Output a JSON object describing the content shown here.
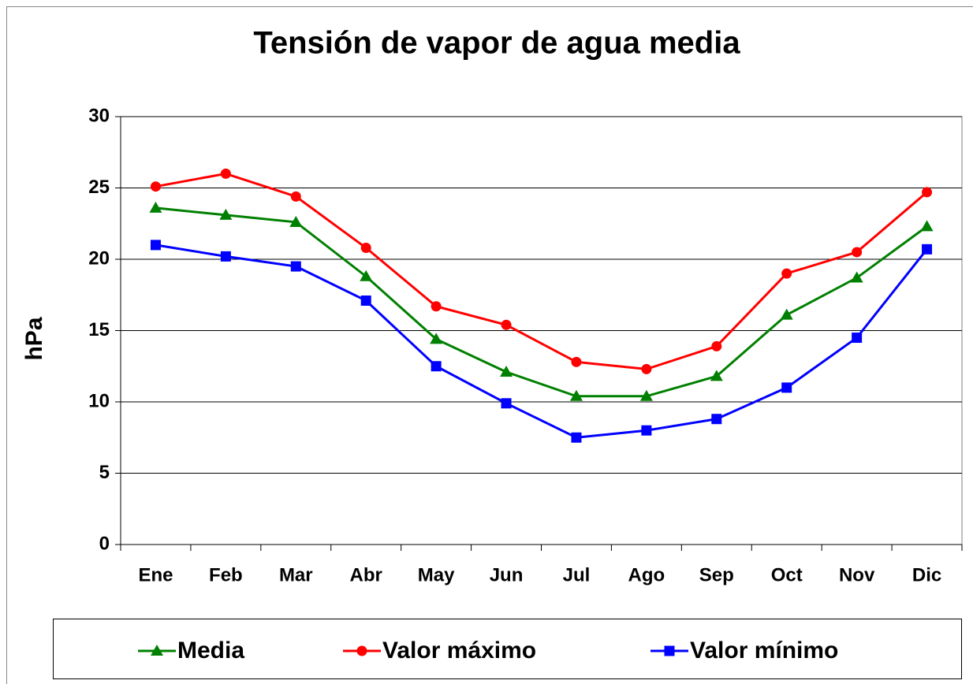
{
  "chart_data": {
    "type": "line",
    "title": "Tensión de vapor de agua media",
    "y_label": "hPa",
    "categories": [
      "Ene",
      "Feb",
      "Mar",
      "Abr",
      "May",
      "Jun",
      "Jul",
      "Ago",
      "Sep",
      "Oct",
      "Nov",
      "Dic"
    ],
    "series": [
      {
        "name": "Media",
        "color": "#008000",
        "marker": "triangle",
        "values": [
          23.6,
          23.1,
          22.6,
          18.8,
          14.4,
          12.1,
          10.4,
          10.4,
          11.8,
          16.1,
          18.7,
          22.3
        ]
      },
      {
        "name": "Valor máximo",
        "color": "#ff0000",
        "marker": "circle",
        "values": [
          25.1,
          26.0,
          24.4,
          20.8,
          16.7,
          15.4,
          12.8,
          12.3,
          13.9,
          19.0,
          20.5,
          24.7
        ]
      },
      {
        "name": "Valor mínimo",
        "color": "#0000ff",
        "marker": "square",
        "values": [
          21.0,
          20.2,
          19.5,
          17.1,
          12.5,
          9.9,
          7.5,
          8.0,
          8.8,
          11.0,
          14.5,
          20.7
        ]
      }
    ],
    "ylim": [
      0,
      30
    ],
    "yticks": [
      0,
      5,
      10,
      15,
      20,
      25,
      30
    ],
    "grid": true,
    "legend": "bottom"
  }
}
